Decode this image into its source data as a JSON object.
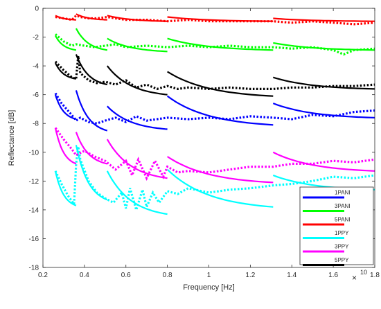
{
  "chart_data": {
    "type": "line",
    "xlabel": "Frequency [Hz]",
    "ylabel": "Reflectance [dB]",
    "x_exponent_label": "10",
    "x_multiplier_symbol": "×",
    "xlim": [
      0.2,
      1.8
    ],
    "ylim": [
      -18,
      0
    ],
    "x_ticks": [
      0.2,
      0.4,
      0.6,
      0.8,
      1,
      1.2,
      1.4,
      1.6,
      1.8
    ],
    "x_tick_labels": [
      "0.2",
      "0.4",
      "0.6",
      "0.8",
      "1",
      "1.2",
      "1.4",
      "1.6",
      "1.8"
    ],
    "y_ticks": [
      0,
      -2,
      -4,
      -6,
      -8,
      -10,
      -12,
      -14,
      -16,
      -18
    ],
    "y_tick_labels": [
      "0",
      "-2",
      "-4",
      "-6",
      "-8",
      "-10",
      "-12",
      "-14",
      "-16",
      "-18"
    ],
    "grid": false,
    "legend_position": "bottom-right",
    "band_edges": [
      0.26,
      0.36,
      0.51,
      0.8,
      1.31,
      1.8
    ],
    "series": [
      {
        "name": "1PANI",
        "color": "#0000ff",
        "fit_bands": [
          {
            "x0": 0.26,
            "x1": 0.36,
            "y0": -6.0,
            "y1": -7.7
          },
          {
            "x0": 0.36,
            "x1": 0.51,
            "y0": -5.7,
            "y1": -8.5
          },
          {
            "x0": 0.51,
            "x1": 0.8,
            "y0": -6.8,
            "y1": -8.4
          },
          {
            "x0": 0.8,
            "x1": 1.31,
            "y0": -6.1,
            "y1": -8.1
          },
          {
            "x0": 1.31,
            "x1": 1.8,
            "y0": -6.6,
            "y1": -7.6
          }
        ],
        "measured": [
          [
            0.26,
            -5.9
          ],
          [
            0.29,
            -6.6
          ],
          [
            0.32,
            -7.1
          ],
          [
            0.35,
            -7.6
          ],
          [
            0.36,
            -7.8
          ],
          [
            0.38,
            -7.6
          ],
          [
            0.42,
            -7.9
          ],
          [
            0.46,
            -8.0
          ],
          [
            0.5,
            -7.8
          ],
          [
            0.55,
            -7.6
          ],
          [
            0.6,
            -7.9
          ],
          [
            0.65,
            -7.5
          ],
          [
            0.7,
            -7.8
          ],
          [
            0.75,
            -7.7
          ],
          [
            0.8,
            -7.6
          ],
          [
            0.9,
            -7.7
          ],
          [
            1.0,
            -7.6
          ],
          [
            1.1,
            -7.7
          ],
          [
            1.2,
            -7.5
          ],
          [
            1.31,
            -7.6
          ],
          [
            1.4,
            -7.7
          ],
          [
            1.5,
            -7.4
          ],
          [
            1.6,
            -7.5
          ],
          [
            1.7,
            -7.2
          ],
          [
            1.8,
            -7.1
          ]
        ]
      },
      {
        "name": "3PANI",
        "color": "#00ff00",
        "fit_bands": [
          {
            "x0": 0.26,
            "x1": 0.36,
            "y0": -1.9,
            "y1": -2.9
          },
          {
            "x0": 0.36,
            "x1": 0.51,
            "y0": -1.4,
            "y1": -2.9
          },
          {
            "x0": 0.51,
            "x1": 0.8,
            "y0": -2.1,
            "y1": -3.0
          },
          {
            "x0": 0.8,
            "x1": 1.31,
            "y0": -2.1,
            "y1": -2.9
          },
          {
            "x0": 1.31,
            "x1": 1.8,
            "y0": -2.4,
            "y1": -2.9
          }
        ],
        "measured": [
          [
            0.26,
            -1.8
          ],
          [
            0.3,
            -2.3
          ],
          [
            0.34,
            -2.6
          ],
          [
            0.36,
            -2.5
          ],
          [
            0.4,
            -2.6
          ],
          [
            0.45,
            -2.7
          ],
          [
            0.5,
            -2.6
          ],
          [
            0.55,
            -2.5
          ],
          [
            0.6,
            -2.7
          ],
          [
            0.7,
            -2.6
          ],
          [
            0.8,
            -2.7
          ],
          [
            0.9,
            -2.6
          ],
          [
            1.0,
            -2.7
          ],
          [
            1.1,
            -2.6
          ],
          [
            1.2,
            -2.7
          ],
          [
            1.31,
            -2.7
          ],
          [
            1.4,
            -2.8
          ],
          [
            1.5,
            -2.7
          ],
          [
            1.6,
            -2.9
          ],
          [
            1.65,
            -3.2
          ],
          [
            1.7,
            -2.9
          ],
          [
            1.8,
            -2.8
          ]
        ]
      },
      {
        "name": "5PANI",
        "color": "#ff0000",
        "fit_bands": [
          {
            "x0": 0.26,
            "x1": 0.36,
            "y0": -0.5,
            "y1": -0.8
          },
          {
            "x0": 0.36,
            "x1": 0.51,
            "y0": -0.4,
            "y1": -0.8
          },
          {
            "x0": 0.51,
            "x1": 0.8,
            "y0": -0.5,
            "y1": -0.9
          },
          {
            "x0": 0.8,
            "x1": 1.31,
            "y0": -0.6,
            "y1": -0.9
          },
          {
            "x0": 1.31,
            "x1": 1.8,
            "y0": -0.7,
            "y1": -0.9
          }
        ],
        "measured": [
          [
            0.26,
            -0.6
          ],
          [
            0.3,
            -0.7
          ],
          [
            0.34,
            -0.8
          ],
          [
            0.36,
            -0.5
          ],
          [
            0.38,
            -0.6
          ],
          [
            0.42,
            -0.7
          ],
          [
            0.46,
            -0.7
          ],
          [
            0.51,
            -0.6
          ],
          [
            0.55,
            -0.7
          ],
          [
            0.6,
            -0.8
          ],
          [
            0.7,
            -0.8
          ],
          [
            0.8,
            -0.9
          ],
          [
            0.9,
            -0.8
          ],
          [
            1.0,
            -0.9
          ],
          [
            1.1,
            -0.9
          ],
          [
            1.2,
            -0.9
          ],
          [
            1.31,
            -0.9
          ],
          [
            1.4,
            -1.0
          ],
          [
            1.5,
            -0.9
          ],
          [
            1.6,
            -1.0
          ],
          [
            1.7,
            -1.1
          ],
          [
            1.8,
            -1.0
          ]
        ]
      },
      {
        "name": "1PPY",
        "color": "#00ffff",
        "fit_bands": [
          {
            "x0": 0.26,
            "x1": 0.36,
            "y0": -11.3,
            "y1": -13.7
          },
          {
            "x0": 0.36,
            "x1": 0.51,
            "y0": -9.5,
            "y1": -13.3
          },
          {
            "x0": 0.51,
            "x1": 0.8,
            "y0": -11.3,
            "y1": -14.3
          },
          {
            "x0": 0.8,
            "x1": 1.31,
            "y0": -11.2,
            "y1": -13.8
          },
          {
            "x0": 1.31,
            "x1": 1.8,
            "y0": -11.6,
            "y1": -12.6
          }
        ],
        "measured": [
          [
            0.26,
            -11.3
          ],
          [
            0.29,
            -12.2
          ],
          [
            0.32,
            -13.0
          ],
          [
            0.35,
            -13.6
          ],
          [
            0.36,
            -10.8
          ],
          [
            0.37,
            -9.6
          ],
          [
            0.38,
            -10.5
          ],
          [
            0.42,
            -12.0
          ],
          [
            0.46,
            -12.8
          ],
          [
            0.5,
            -13.2
          ],
          [
            0.54,
            -13.5
          ],
          [
            0.58,
            -12.8
          ],
          [
            0.6,
            -13.9
          ],
          [
            0.62,
            -12.5
          ],
          [
            0.65,
            -14.0
          ],
          [
            0.68,
            -12.6
          ],
          [
            0.7,
            -13.8
          ],
          [
            0.73,
            -12.8
          ],
          [
            0.76,
            -13.5
          ],
          [
            0.8,
            -12.7
          ],
          [
            0.85,
            -12.9
          ],
          [
            0.9,
            -12.5
          ],
          [
            1.0,
            -12.8
          ],
          [
            1.1,
            -12.6
          ],
          [
            1.2,
            -12.5
          ],
          [
            1.31,
            -12.3
          ],
          [
            1.4,
            -12.2
          ],
          [
            1.5,
            -12.0
          ],
          [
            1.6,
            -11.7
          ],
          [
            1.7,
            -11.8
          ],
          [
            1.8,
            -11.6
          ]
        ]
      },
      {
        "name": "3PPY",
        "color": "#ff00ff",
        "fit_bands": [
          {
            "x0": 0.26,
            "x1": 0.36,
            "y0": -8.3,
            "y1": -10.8
          },
          {
            "x0": 0.36,
            "x1": 0.51,
            "y0": -8.6,
            "y1": -10.8
          },
          {
            "x0": 0.51,
            "x1": 0.8,
            "y0": -9.1,
            "y1": -11.8
          },
          {
            "x0": 0.8,
            "x1": 1.31,
            "y0": -10.3,
            "y1": -12.1
          },
          {
            "x0": 1.31,
            "x1": 1.8,
            "y0": -10.0,
            "y1": -11.3
          }
        ],
        "measured": [
          [
            0.26,
            -8.3
          ],
          [
            0.3,
            -9.1
          ],
          [
            0.34,
            -9.8
          ],
          [
            0.36,
            -10.2
          ],
          [
            0.4,
            -9.9
          ],
          [
            0.45,
            -10.3
          ],
          [
            0.5,
            -10.6
          ],
          [
            0.55,
            -11.2
          ],
          [
            0.6,
            -10.6
          ],
          [
            0.63,
            -11.6
          ],
          [
            0.66,
            -10.5
          ],
          [
            0.7,
            -11.8
          ],
          [
            0.74,
            -10.6
          ],
          [
            0.78,
            -11.7
          ],
          [
            0.8,
            -11.0
          ],
          [
            0.85,
            -11.4
          ],
          [
            0.9,
            -11.3
          ],
          [
            1.0,
            -11.4
          ],
          [
            1.1,
            -11.2
          ],
          [
            1.2,
            -11.0
          ],
          [
            1.31,
            -11.0
          ],
          [
            1.4,
            -10.8
          ],
          [
            1.5,
            -10.8
          ],
          [
            1.6,
            -10.6
          ],
          [
            1.7,
            -10.7
          ],
          [
            1.8,
            -10.5
          ]
        ]
      },
      {
        "name": "5PPY",
        "color": "#000000",
        "fit_bands": [
          {
            "x0": 0.26,
            "x1": 0.36,
            "y0": -3.8,
            "y1": -4.9
          },
          {
            "x0": 0.36,
            "x1": 0.51,
            "y0": -3.2,
            "y1": -5.3
          },
          {
            "x0": 0.51,
            "x1": 0.8,
            "y0": -4.0,
            "y1": -6.0
          },
          {
            "x0": 0.8,
            "x1": 1.31,
            "y0": -4.4,
            "y1": -6.1
          },
          {
            "x0": 1.31,
            "x1": 1.8,
            "y0": -4.8,
            "y1": -5.6
          }
        ],
        "measured": [
          [
            0.26,
            -3.7
          ],
          [
            0.3,
            -4.3
          ],
          [
            0.34,
            -4.8
          ],
          [
            0.36,
            -4.9
          ],
          [
            0.37,
            -3.3
          ],
          [
            0.38,
            -4.5
          ],
          [
            0.42,
            -5.0
          ],
          [
            0.46,
            -5.2
          ],
          [
            0.5,
            -5.1
          ],
          [
            0.55,
            -5.3
          ],
          [
            0.6,
            -5.0
          ],
          [
            0.65,
            -5.5
          ],
          [
            0.7,
            -5.3
          ],
          [
            0.75,
            -5.6
          ],
          [
            0.8,
            -5.4
          ],
          [
            0.85,
            -5.6
          ],
          [
            0.9,
            -5.5
          ],
          [
            1.0,
            -5.6
          ],
          [
            1.1,
            -5.5
          ],
          [
            1.2,
            -5.6
          ],
          [
            1.31,
            -5.6
          ],
          [
            1.4,
            -5.5
          ],
          [
            1.5,
            -5.5
          ],
          [
            1.6,
            -5.4
          ],
          [
            1.7,
            -5.4
          ],
          [
            1.8,
            -5.3
          ]
        ]
      }
    ]
  }
}
